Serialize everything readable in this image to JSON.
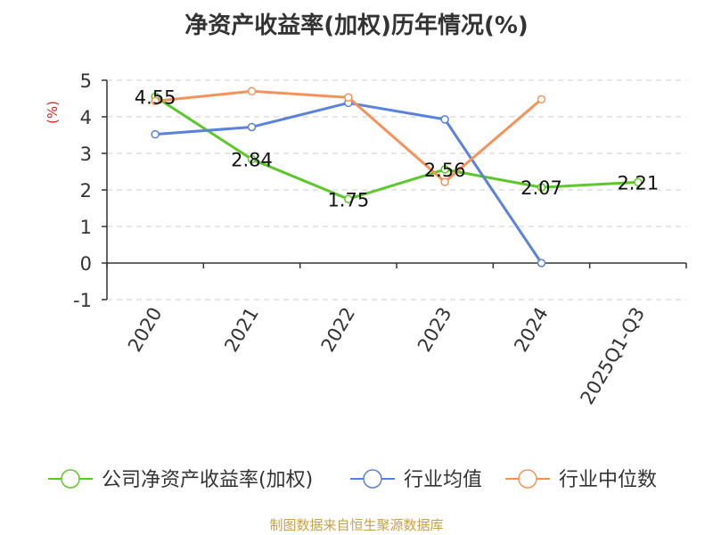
{
  "chart_data": {
    "type": "line",
    "title": "净资产收益率(加权)历年情况(%)",
    "ylabel": "(%)",
    "ylim": [
      -1,
      5
    ],
    "yticks": [
      5,
      4,
      3,
      2,
      1,
      0,
      -1
    ],
    "categories": [
      "2020",
      "2021",
      "2022",
      "2023",
      "2024",
      "2025Q1-Q3"
    ],
    "grid": true,
    "legend_position": "bottom",
    "series": [
      {
        "name": "公司净资产收益率(加权)",
        "color": "#5cc82a",
        "values": [
          4.55,
          2.84,
          1.75,
          2.56,
          2.07,
          2.21
        ],
        "show_labels": true
      },
      {
        "name": "行业均值",
        "color": "#5a82dc",
        "values": [
          3.52,
          3.72,
          4.38,
          3.93,
          0.0,
          null
        ],
        "show_labels": false
      },
      {
        "name": "行业中位数",
        "color": "#f5925a",
        "values": [
          4.43,
          4.7,
          4.53,
          2.22,
          4.48,
          null
        ],
        "show_labels": false
      }
    ]
  },
  "source": "制图数据来自恒生聚源数据库"
}
